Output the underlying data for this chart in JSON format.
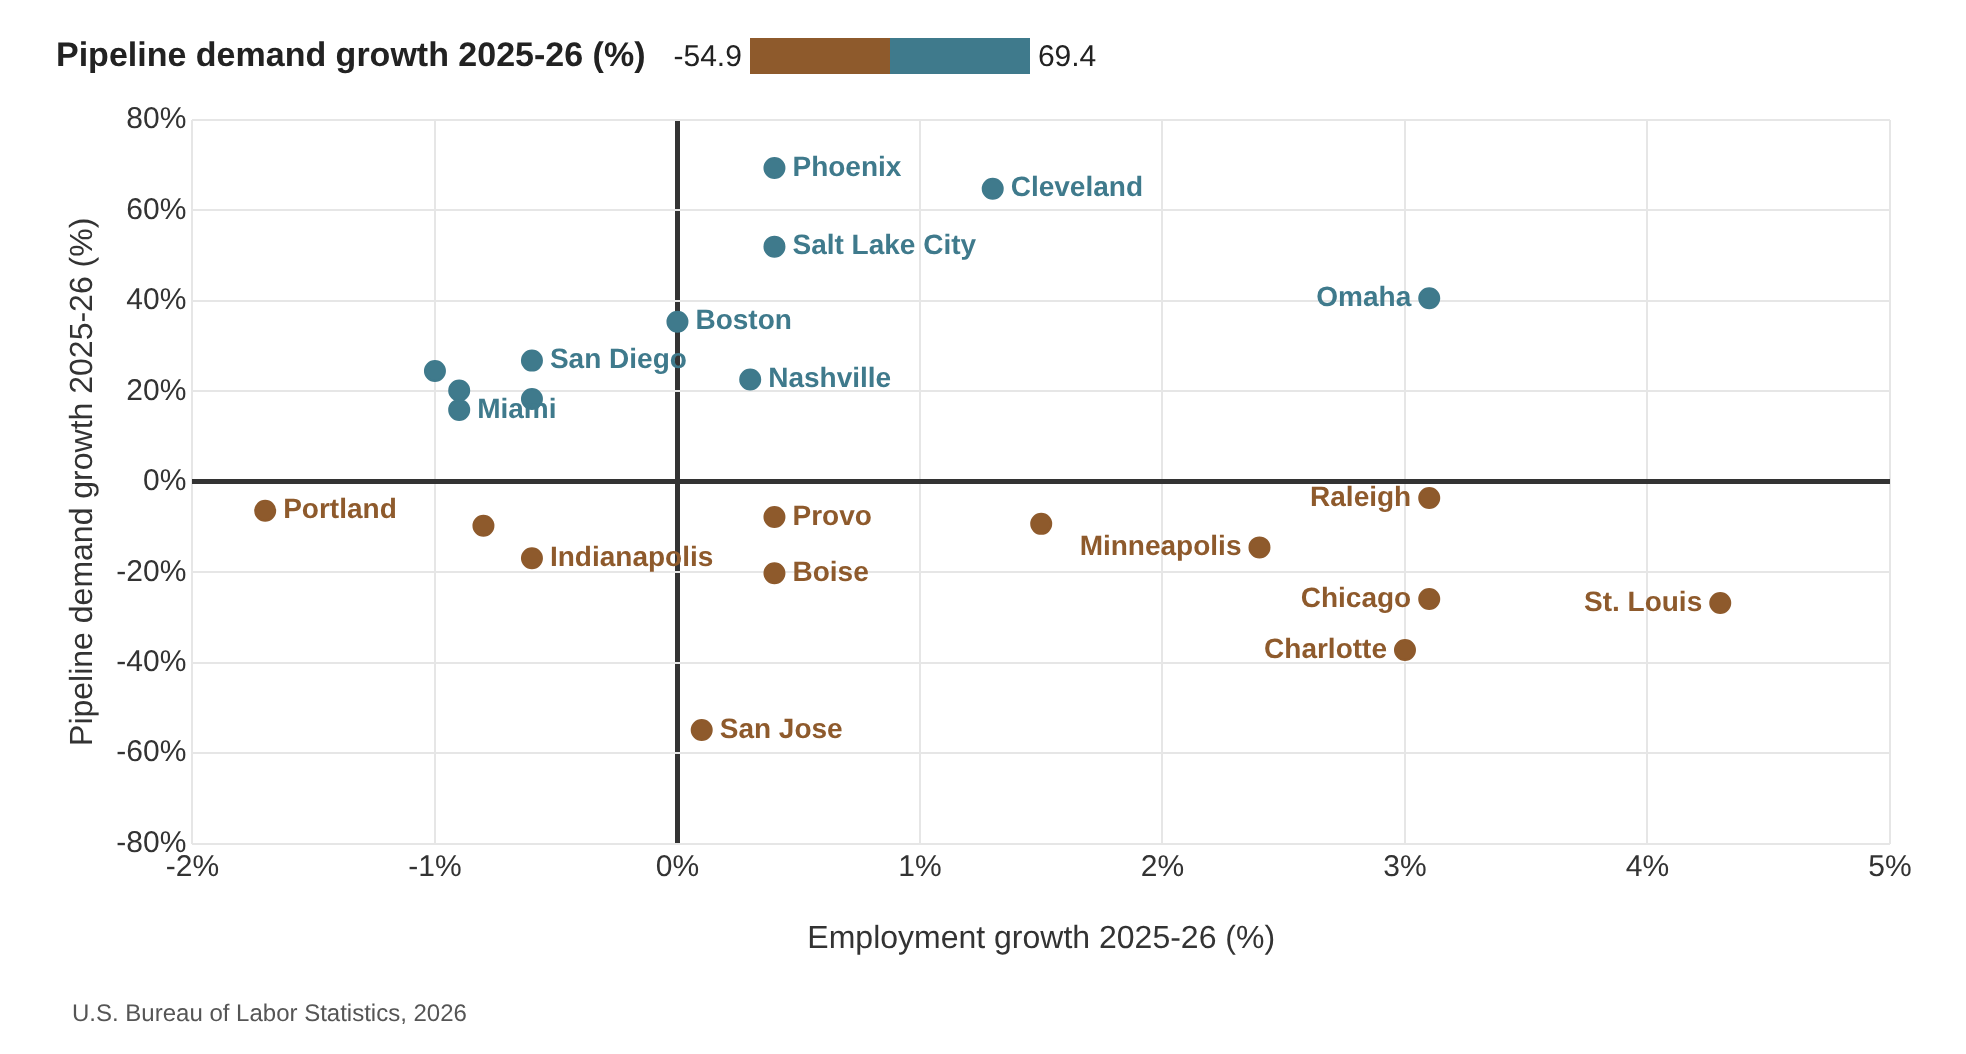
{
  "chart_data": {
    "type": "scatter",
    "title": "Pipeline demand growth 2025-26 (%)",
    "xlabel": "Employment growth 2025-26 (%)",
    "ylabel": "Pipeline demand growth 2025-26 (%)",
    "series": [
      {
        "color": "#3f7a8c",
        "x": [
          0.4,
          1.3,
          0.4,
          0,
          3.1,
          -0.6,
          -1.0,
          -0.9,
          -0.6,
          -0.9,
          0.3
        ],
        "values": [
          69.4,
          64.8,
          52,
          35.4,
          40.6,
          26.8,
          24.5,
          20.2,
          18.3,
          15.9,
          22.6
        ]
      },
      {
        "color": "#8e5a2c",
        "x": [
          -1.7,
          -0.8,
          -0.6,
          0.4,
          0.4,
          0.1,
          1.5,
          2.4,
          3.1,
          3.1,
          4.3,
          3.0
        ],
        "values": [
          -6.4,
          -9.7,
          -16.9,
          -7.8,
          -20.2,
          -54.9,
          -9.3,
          -14.5,
          -3.6,
          -25.9,
          -26.8,
          -37.2
        ]
      }
    ],
    "xlim": [
      -2,
      5
    ],
    "xticks": [
      {
        "value": -2,
        "label": "-2%"
      },
      {
        "value": -1,
        "label": "-1%"
      },
      {
        "value": 0,
        "label": "0%"
      },
      {
        "value": 1,
        "label": "1%"
      },
      {
        "value": 2,
        "label": "2%"
      },
      {
        "value": 3,
        "label": "3%"
      },
      {
        "value": 4,
        "label": "4%"
      },
      {
        "value": 5,
        "label": "5%"
      }
    ],
    "ylim": [
      -80,
      80
    ],
    "yticks": [
      {
        "value": -80,
        "label": "-80%"
      },
      {
        "value": -60,
        "label": "-60%"
      },
      {
        "value": -40,
        "label": "-40%"
      },
      {
        "value": -20,
        "label": "-20%"
      },
      {
        "value": 0,
        "label": "0%"
      },
      {
        "value": 20,
        "label": "20%"
      },
      {
        "value": 40,
        "label": "40%"
      },
      {
        "value": 60,
        "label": "60%"
      },
      {
        "value": 80,
        "label": "80%"
      }
    ],
    "grid": true,
    "legend": false,
    "marker": "circle",
    "annotations": [
      "-54.9",
      "69.4",
      "U.S. Bureau of Labor Statistics, 2026",
      {
        "text": "Phoenix",
        "x": 0.4,
        "y": 69.4
      },
      {
        "text": "Cleveland",
        "x": 1.3,
        "y": 64.8
      },
      {
        "text": "Salt Lake City",
        "x": 0.4,
        "y": 52
      },
      {
        "text": "Boston",
        "x": 0,
        "y": 35.4
      },
      {
        "text": "Omaha",
        "x": 3.1,
        "y": 40.6
      },
      {
        "text": "San Diego",
        "x": -0.6,
        "y": 26.8
      },
      {
        "text": "Miami",
        "x": -0.9,
        "y": 15.9
      },
      {
        "text": "Nashville",
        "x": 0.3,
        "y": 22.6
      },
      {
        "text": "Portland",
        "x": -1.7,
        "y": -6.4
      },
      {
        "text": "Indianapolis",
        "x": -0.6,
        "y": -16.9
      },
      {
        "text": "Provo",
        "x": 0.4,
        "y": -7.8
      },
      {
        "text": "Boise",
        "x": 0.4,
        "y": -20.2
      },
      {
        "text": "San Jose",
        "x": 0.1,
        "y": -54.9
      },
      {
        "text": "Minneapolis",
        "x": 2.4,
        "y": -14.5
      },
      {
        "text": "Raleigh",
        "x": 3.1,
        "y": -3.6
      },
      {
        "text": "Chicago",
        "x": 3.1,
        "y": -25.9
      },
      {
        "text": "St. Louis",
        "x": 4.3,
        "y": -26.8
      },
      {
        "text": "Charlotte",
        "x": 3.0,
        "y": -37.2
      }
    ]
  }
}
